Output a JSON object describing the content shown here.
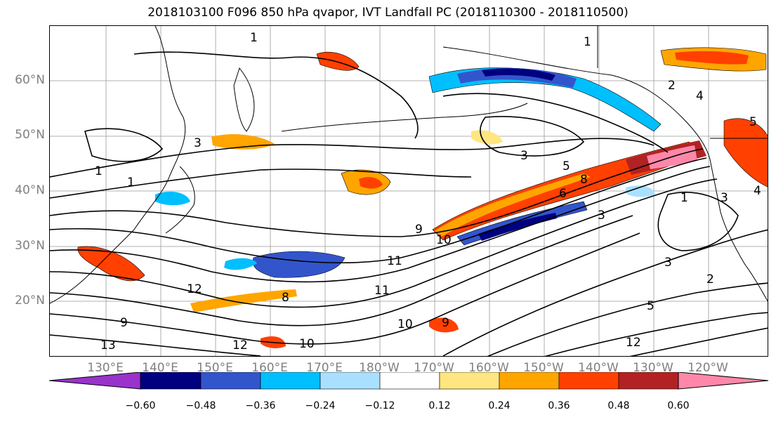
{
  "title": "2018103100 F096 850 hPa qvapor, IVT Landfall PC (2018110300 - 2018110500)",
  "lat_labels": [
    "60°N",
    "50°N",
    "40°N",
    "30°N",
    "20°N"
  ],
  "lon_labels": [
    "130°E",
    "140°E",
    "150°E",
    "160°E",
    "170°E",
    "180°W",
    "170°W",
    "160°W",
    "150°W",
    "140°W",
    "130°W",
    "120°W"
  ],
  "colorbar": {
    "ticks": [
      "−0.60",
      "−0.48",
      "−0.36",
      "−0.24",
      "−0.12",
      "0.12",
      "0.24",
      "0.36",
      "0.48",
      "0.60"
    ],
    "colors": [
      "#9933cc",
      "#000080",
      "#3355cc",
      "#00bfff",
      "#aae0ff",
      "#ffffff",
      "#ffe680",
      "#ffa500",
      "#ff4000",
      "#b22222",
      "#ff88aa"
    ]
  },
  "contour_labels": [
    "1",
    "3",
    "1",
    "3",
    "1",
    "5",
    "8",
    "6",
    "3",
    "1",
    "3",
    "4",
    "5",
    "11",
    "10",
    "9",
    "3",
    "2",
    "5",
    "12",
    "12",
    "8",
    "13",
    "9",
    "11",
    "10",
    "9",
    "12",
    "1",
    "4",
    "2",
    "10"
  ]
}
